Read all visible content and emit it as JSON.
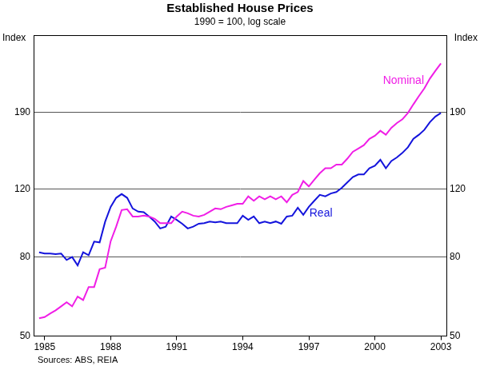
{
  "chart_data": {
    "type": "line",
    "title": "Established House Prices",
    "subtitle": "1990 = 100, log scale",
    "ylabel": "Index",
    "y2label": "Index",
    "source": "Sources: ABS, REIA",
    "log": "y",
    "grid": true,
    "x": [
      1984.75,
      1985,
      1985.25,
      1985.5,
      1985.75,
      1986,
      1986.25,
      1986.5,
      1986.75,
      1987,
      1987.25,
      1987.5,
      1987.75,
      1988,
      1988.25,
      1988.5,
      1988.75,
      1989,
      1989.25,
      1989.5,
      1989.75,
      1990,
      1990.25,
      1990.5,
      1990.75,
      1991,
      1991.25,
      1991.5,
      1991.75,
      1992,
      1992.25,
      1992.5,
      1992.75,
      1993,
      1993.25,
      1993.5,
      1993.75,
      1994,
      1994.25,
      1994.5,
      1994.75,
      1995,
      1995.25,
      1995.5,
      1995.75,
      1996,
      1996.25,
      1996.5,
      1996.75,
      1997,
      1997.25,
      1997.5,
      1997.75,
      1998,
      1998.25,
      1998.5,
      1998.75,
      1999,
      1999.25,
      1999.5,
      1999.75,
      2000,
      2000.25,
      2000.5,
      2000.75,
      2001,
      2001.25,
      2001.5,
      2001.75,
      2002,
      2002.25,
      2002.5,
      2002.75,
      2003
    ],
    "series": [
      {
        "name": "Nominal",
        "color": "#f01ee6",
        "values": [
          55.6,
          56,
          57.2,
          58.3,
          59.7,
          61.2,
          59.7,
          63.3,
          62,
          67,
          67,
          74.5,
          75.2,
          88,
          96,
          106,
          106.5,
          102,
          102,
          102.5,
          102,
          100.6,
          98,
          98,
          98,
          102,
          105,
          104,
          102.5,
          102,
          103,
          105,
          107,
          106.5,
          108,
          109,
          110,
          110,
          115,
          112,
          115,
          113,
          115,
          113,
          115,
          111,
          116,
          118,
          126,
          122,
          127,
          132,
          136,
          136,
          139,
          139,
          144,
          150,
          153,
          156,
          162,
          165,
          170,
          166,
          173,
          178,
          182,
          189,
          199,
          209,
          219,
          232,
          243,
          254
        ]
      },
      {
        "name": "Real",
        "color": "#1414dc",
        "values": [
          82.4,
          81.8,
          81.8,
          81.5,
          81.8,
          78.7,
          80.1,
          76.2,
          82.4,
          81,
          87.8,
          87.4,
          98.9,
          108,
          114,
          116.6,
          114,
          107,
          105,
          104.7,
          102,
          99,
          95,
          96,
          102,
          100,
          97.7,
          95,
          96,
          97.7,
          98,
          99,
          98.5,
          99,
          98,
          98,
          98,
          102.5,
          100,
          102,
          98,
          99,
          98,
          99,
          97.7,
          102,
          102.5,
          107.5,
          103,
          108,
          112,
          116,
          115,
          117,
          118,
          121,
          125,
          129,
          131,
          131,
          136,
          138,
          143,
          136,
          142,
          145,
          149,
          154,
          162,
          166,
          171,
          179,
          185,
          189
        ]
      }
    ],
    "annotations": [
      {
        "text": "Nominal",
        "x": 2001.3,
        "y": 229
      },
      {
        "text": "Real",
        "x": 1997.55,
        "y": 104
      }
    ],
    "xlim": [
      1984.5,
      2003.25
    ],
    "xticks": [
      1985,
      1988,
      1991,
      1994,
      1997,
      2000,
      2003
    ],
    "ylim": [
      50,
      300
    ],
    "yticks": [
      50,
      80,
      120,
      190
    ],
    "y2lim": [
      50,
      300
    ],
    "y2ticks": [
      50,
      80,
      120,
      190
    ]
  }
}
